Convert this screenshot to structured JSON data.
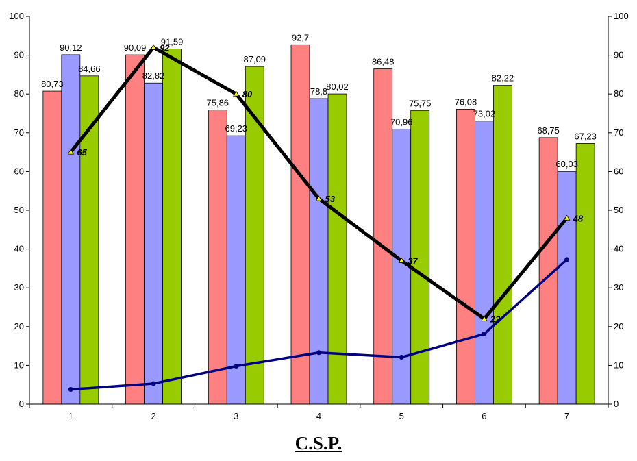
{
  "chart_data": {
    "type": "bar",
    "categories": [
      "1",
      "2",
      "3",
      "4",
      "5",
      "6",
      "7"
    ],
    "series": [
      {
        "kind": "bar",
        "color": "#ff8080",
        "values": [
          80.73,
          90.09,
          75.86,
          92.7,
          86.48,
          76.08,
          68.75
        ],
        "labels": [
          "80,73",
          "90,09",
          "75,86",
          "92,7",
          "86,48",
          "76,08",
          "68,75"
        ]
      },
      {
        "kind": "bar",
        "color": "#9999ff",
        "values": [
          90.12,
          82.82,
          69.23,
          78.8,
          70.96,
          73.02,
          60.03
        ],
        "labels": [
          "90,12",
          "82,82",
          "69,23",
          "78,8",
          "70,96",
          "73,02",
          "60,03"
        ]
      },
      {
        "kind": "bar",
        "color": "#99cc00",
        "values": [
          84.66,
          91.59,
          87.09,
          80.02,
          75.75,
          82.22,
          67.23
        ],
        "labels": [
          "84,66",
          "91,59",
          "87,09",
          "80,02",
          "75,75",
          "82,22",
          "67,23"
        ]
      },
      {
        "kind": "line",
        "color": "#000000",
        "marker": "triangle",
        "marker_color": "#ffff00",
        "values": [
          65,
          92,
          80,
          53,
          37,
          22,
          48
        ],
        "labels": [
          "65",
          "92",
          "80",
          "53",
          "37",
          "22",
          "48"
        ]
      },
      {
        "kind": "line",
        "color": "#000080",
        "marker": "circle",
        "values": [
          3.8,
          5.3,
          9.8,
          13.3,
          12.1,
          18.1,
          37.3
        ]
      }
    ],
    "ylim": [
      0,
      100
    ],
    "yticks": [
      "0",
      "10",
      "20",
      "30",
      "40",
      "50",
      "60",
      "70",
      "80",
      "90",
      "100"
    ],
    "y2lim": [
      0,
      100
    ],
    "y2ticks": [
      "0",
      "10",
      "20",
      "30",
      "40",
      "50",
      "60",
      "70",
      "80",
      "90",
      "100"
    ],
    "xlabel": "C.S.P.",
    "grid": false,
    "legend": "none"
  }
}
